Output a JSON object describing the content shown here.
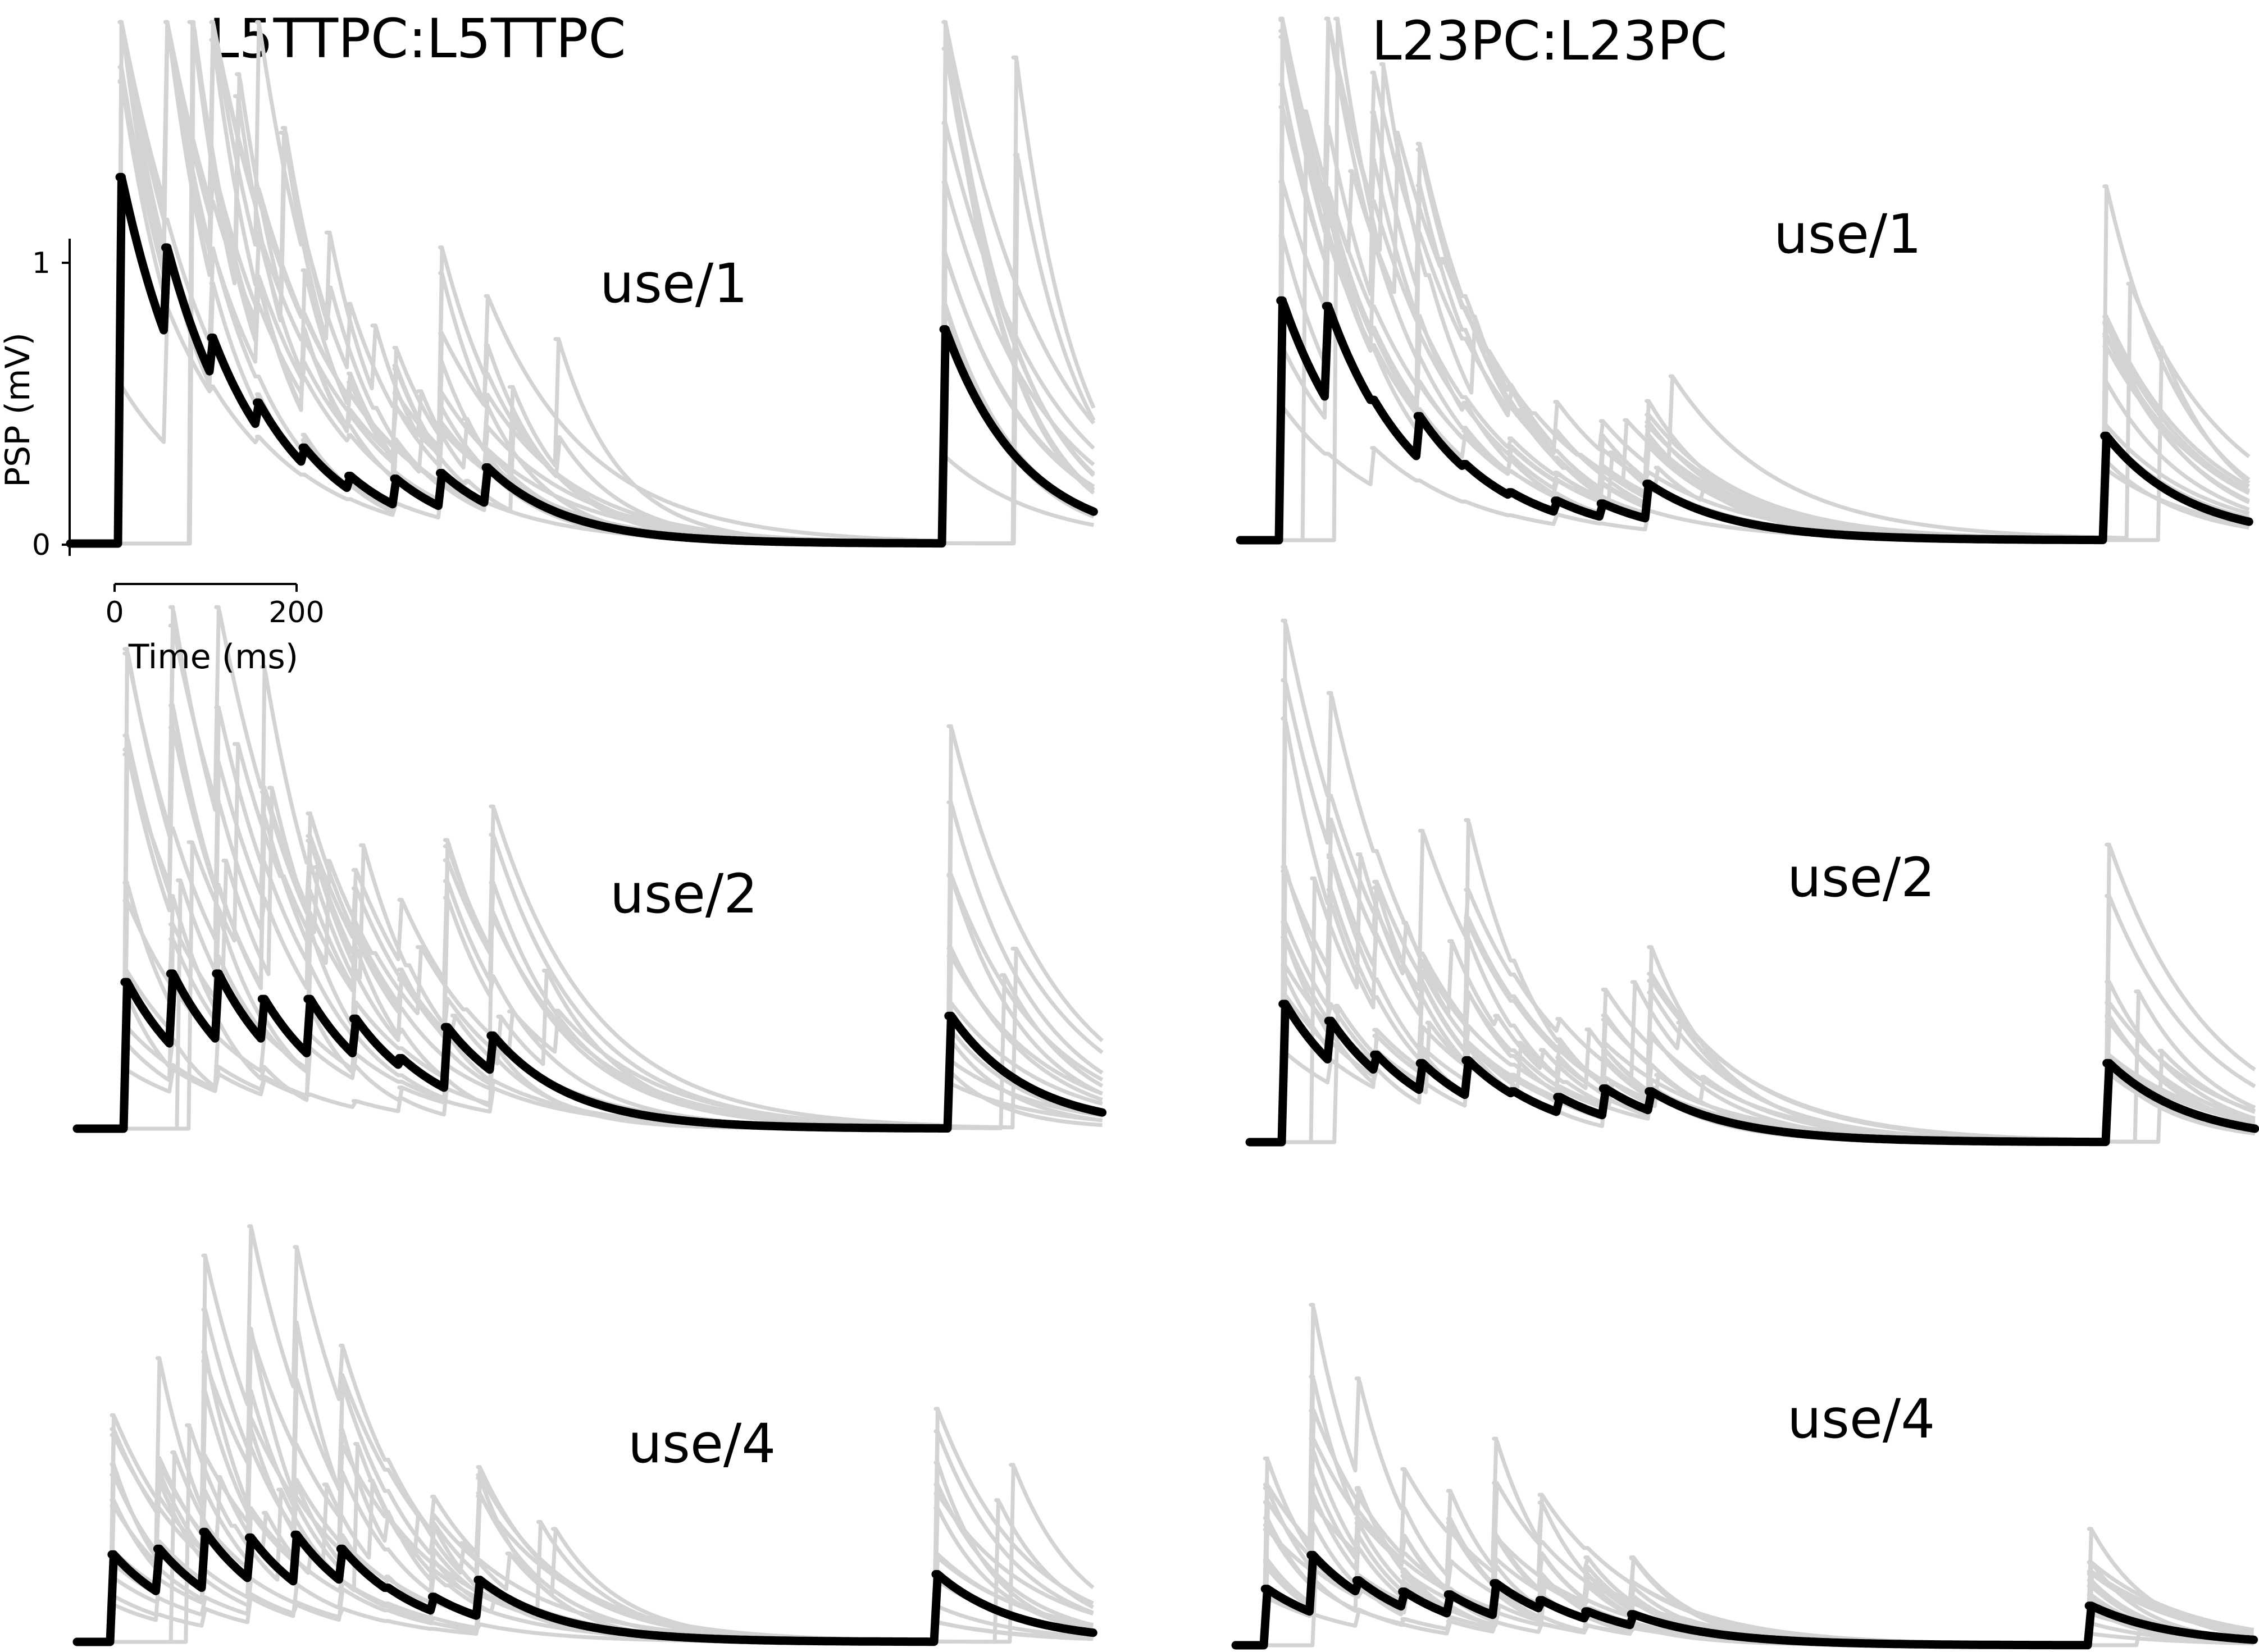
{
  "chart_data": {
    "type": "line",
    "columns": [
      {
        "title": "L5TTPC:L5TTPC"
      },
      {
        "title": "L23PC:L23PC"
      }
    ],
    "panels": [
      {
        "id": "l5-use1",
        "col": 0,
        "row": 0,
        "label": "use/1",
        "mean": {
          "baseline": 0,
          "spike_times": [
            0,
            50,
            100,
            150,
            200,
            250,
            300,
            350,
            400,
            900
          ],
          "peaks": [
            1.3,
            1.05,
            0.73,
            0.5,
            0.34,
            0.24,
            0.23,
            0.25,
            0.27,
            0.76
          ],
          "tau": 85
        }
      },
      {
        "id": "l23-use1",
        "col": 1,
        "row": 0,
        "label": "use/1",
        "mean": {
          "baseline": 0,
          "spike_times": [
            0,
            50,
            100,
            150,
            200,
            250,
            300,
            350,
            400,
            900
          ],
          "peaks": [
            0.85,
            0.83,
            0.48,
            0.44,
            0.27,
            0.17,
            0.14,
            0.13,
            0.2,
            0.37
          ],
          "tau": 90
        }
      },
      {
        "id": "l5-use2",
        "col": 0,
        "row": 1,
        "label": "use/2",
        "mean": {
          "baseline": 0,
          "spike_times": [
            0,
            50,
            100,
            150,
            200,
            250,
            300,
            350,
            400,
            900
          ],
          "peaks": [
            0.52,
            0.55,
            0.55,
            0.46,
            0.46,
            0.39,
            0.25,
            0.36,
            0.33,
            0.4
          ],
          "tau": 85
        }
      },
      {
        "id": "l23-use2",
        "col": 1,
        "row": 1,
        "label": "use/2",
        "mean": {
          "baseline": 0,
          "spike_times": [
            0,
            50,
            100,
            150,
            200,
            250,
            300,
            350,
            400,
            900
          ],
          "peaks": [
            0.49,
            0.43,
            0.31,
            0.28,
            0.29,
            0.18,
            0.16,
            0.19,
            0.18,
            0.28
          ],
          "tau": 90
        }
      },
      {
        "id": "l5-use4",
        "col": 0,
        "row": 2,
        "label": "use/4",
        "mean": {
          "baseline": 0,
          "spike_times": [
            0,
            50,
            100,
            150,
            200,
            250,
            300,
            350,
            400,
            900
          ],
          "peaks": [
            0.31,
            0.33,
            0.39,
            0.37,
            0.38,
            0.33,
            0.16,
            0.16,
            0.22,
            0.24
          ],
          "tau": 85
        }
      },
      {
        "id": "l23-use4",
        "col": 1,
        "row": 2,
        "label": "use/4",
        "mean": {
          "baseline": 0,
          "spike_times": [
            0,
            50,
            100,
            150,
            200,
            250,
            300,
            350,
            400,
            900
          ],
          "peaks": [
            0.2,
            0.32,
            0.23,
            0.19,
            0.18,
            0.22,
            0.16,
            0.12,
            0.11,
            0.14
          ],
          "tau": 90
        }
      }
    ],
    "yaxis": {
      "label": "PSP (mV)",
      "ticks": [
        0,
        1
      ],
      "range": [
        0,
        1.1
      ]
    },
    "xaxis": {
      "label": "Time (ms)",
      "ticks": [
        0,
        200
      ],
      "range": [
        0,
        200
      ]
    },
    "colors": {
      "individual": "#d3d3d3",
      "mean": "#000000"
    }
  }
}
